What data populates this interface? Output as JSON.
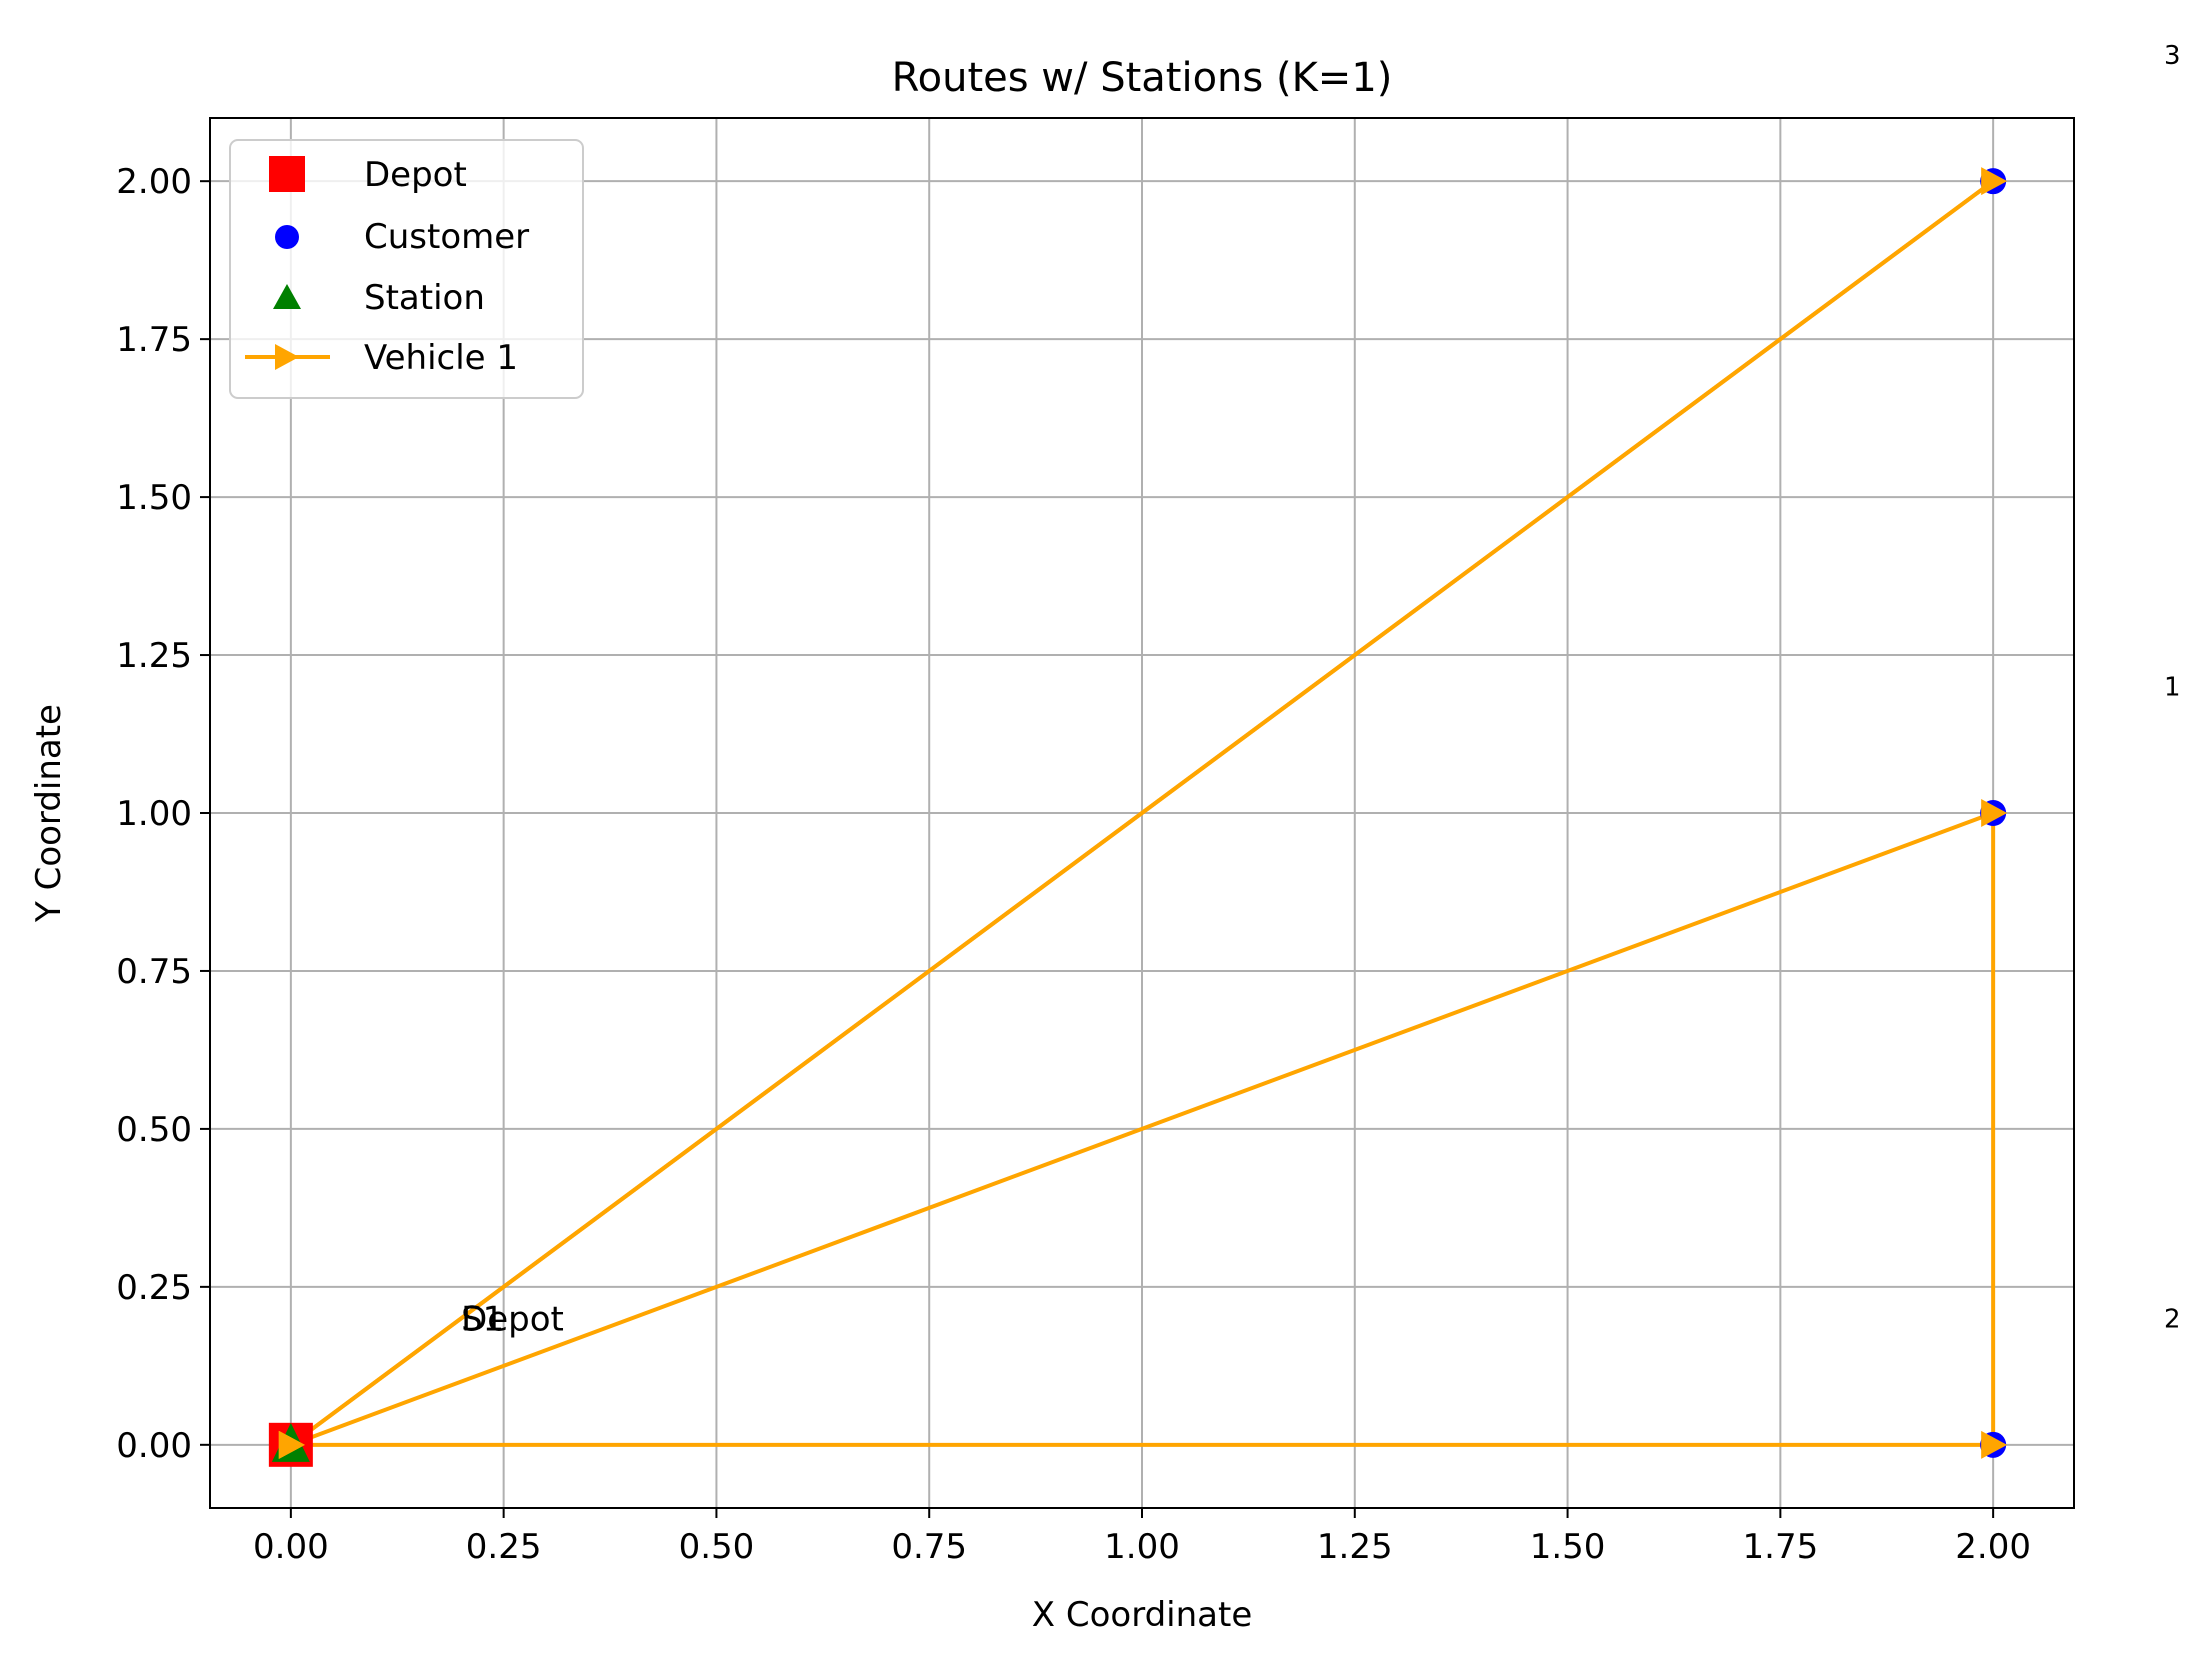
{
  "chart_data": {
    "type": "scatter",
    "title": "Routes w/ Stations (K=1)",
    "xlabel": "X Coordinate",
    "ylabel": "Y Coordinate",
    "xlim": [
      -0.095,
      2.095
    ],
    "ylim": [
      -0.1,
      2.1
    ],
    "grid": true,
    "legend_position": "top-left",
    "x_ticks": [
      "0.00",
      "0.25",
      "0.50",
      "0.75",
      "1.00",
      "1.25",
      "1.50",
      "1.75",
      "2.00"
    ],
    "y_ticks": [
      "0.00",
      "0.25",
      "0.50",
      "0.75",
      "1.00",
      "1.25",
      "1.50",
      "1.75",
      "2.00"
    ],
    "legend": [
      {
        "label": "Depot",
        "marker": "square",
        "color": "#ff0000"
      },
      {
        "label": "Customer",
        "marker": "circle",
        "color": "#0000ff"
      },
      {
        "label": "Station",
        "marker": "triangle",
        "color": "#008000"
      },
      {
        "label": "Vehicle 1",
        "marker": "arrow-line",
        "color": "#ffa500"
      }
    ],
    "depot": {
      "x": 0,
      "y": 0,
      "color": "#ff0000"
    },
    "customers": [
      {
        "label": "1",
        "x": 2,
        "y": 1
      },
      {
        "label": "2",
        "x": 2,
        "y": 0
      },
      {
        "label": "3",
        "x": 2,
        "y": 2
      }
    ],
    "customer_color": "#0000ff",
    "stations": [
      {
        "label": "S1",
        "x": 0,
        "y": 0
      }
    ],
    "station_color": "#008000",
    "routes": [
      {
        "name": "Vehicle 1",
        "color": "#ffa500",
        "path": [
          {
            "x": 0,
            "y": 0
          },
          {
            "x": 2,
            "y": 1
          },
          {
            "x": 2,
            "y": 0
          },
          {
            "x": 0,
            "y": 0
          },
          {
            "x": 2,
            "y": 2
          },
          {
            "x": 0,
            "y": 0
          }
        ]
      }
    ],
    "point_labels": [
      {
        "text": "Depot",
        "x": 0.2,
        "y": 0.2
      },
      {
        "text": "S1",
        "x": 0.2,
        "y": 0.2
      }
    ],
    "margin_labels": [
      {
        "text": "3",
        "y": 2.2
      },
      {
        "text": "1",
        "y": 1.2
      },
      {
        "text": "2",
        "y": 0.2
      }
    ]
  }
}
